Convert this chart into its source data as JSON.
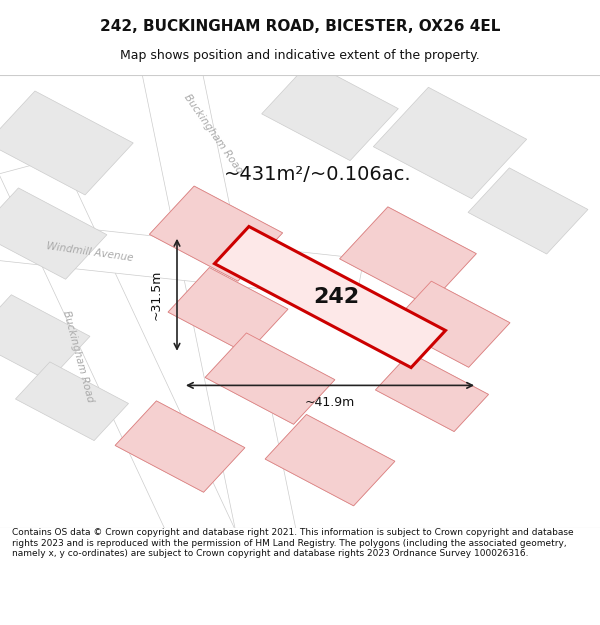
{
  "title": "242, BUCKINGHAM ROAD, BICESTER, OX26 4EL",
  "subtitle": "Map shows position and indicative extent of the property.",
  "footer": "Contains OS data © Crown copyright and database right 2021. This information is subject to Crown copyright and database rights 2023 and is reproduced with the permission of HM Land Registry. The polygons (including the associated geometry, namely x, y co-ordinates) are subject to Crown copyright and database rights 2023 Ordnance Survey 100026316.",
  "area_text": "~431m²/~0.106ac.",
  "label_242": "242",
  "dim_width": "~41.9m",
  "dim_height": "~31.5m",
  "road_label_1": "Buckingham Road",
  "road_label_2": "Buckingham Road",
  "road_label_3": "Windmill Avenue",
  "map_bg": "#f5f5f5",
  "block_color": "#e8e8e8",
  "block_edge": "#cccccc",
  "road_color": "#ffffff",
  "road_edge": "#cccccc",
  "highlight_color": "#cc0000",
  "highlight_fill": "#f5c0c0",
  "dim_color": "#222222",
  "title_color": "#111111",
  "footer_color": "#111111",
  "road_text_color": "#aaaaaa"
}
